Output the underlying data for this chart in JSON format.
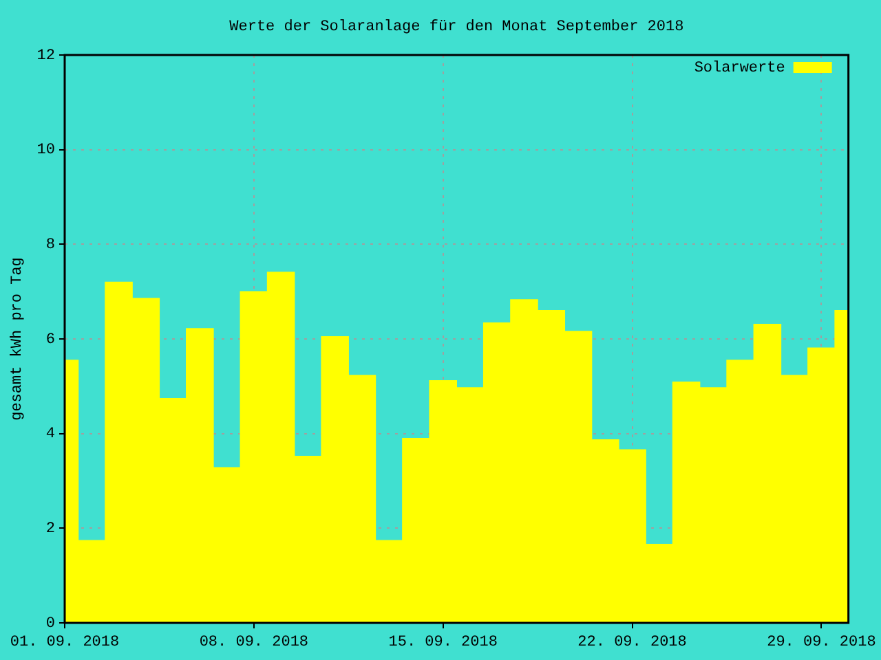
{
  "chart_data": {
    "type": "bar",
    "title": "Werte der Solaranlage für den Monat September 2018",
    "ylabel": "gesamt kWh pro Tag",
    "x": [
      "2018-09-01",
      "2018-09-02",
      "2018-09-03",
      "2018-09-04",
      "2018-09-05",
      "2018-09-06",
      "2018-09-07",
      "2018-09-08",
      "2018-09-09",
      "2018-09-10",
      "2018-09-11",
      "2018-09-12",
      "2018-09-13",
      "2018-09-14",
      "2018-09-15",
      "2018-09-16",
      "2018-09-17",
      "2018-09-18",
      "2018-09-19",
      "2018-09-20",
      "2018-09-21",
      "2018-09-22",
      "2018-09-23",
      "2018-09-24",
      "2018-09-25",
      "2018-09-26",
      "2018-09-27",
      "2018-09-28",
      "2018-09-29",
      "2018-09-30"
    ],
    "series": [
      {
        "name": "Solarwerte",
        "color": "#ffff00",
        "values": [
          5.55,
          1.74,
          7.2,
          6.86,
          4.74,
          6.22,
          3.28,
          7.0,
          7.41,
          3.52,
          6.05,
          5.23,
          1.74,
          3.9,
          5.12,
          4.97,
          6.34,
          6.83,
          6.6,
          6.16,
          3.87,
          3.66,
          1.66,
          5.09,
          4.97,
          5.55,
          6.31,
          5.23,
          5.81,
          6.6
        ]
      }
    ],
    "xlim": [
      "2018-09-01",
      "2018-09-30"
    ],
    "xticks": [
      {
        "value": "2018-09-01",
        "label": "01. 09. 2018"
      },
      {
        "value": "2018-09-08",
        "label": "08. 09. 2018"
      },
      {
        "value": "2018-09-15",
        "label": "15. 09. 2018"
      },
      {
        "value": "2018-09-22",
        "label": "22. 09. 2018"
      },
      {
        "value": "2018-09-29",
        "label": "29. 09. 2018"
      }
    ],
    "ylim": [
      0,
      12
    ],
    "yticks": [
      0,
      2,
      4,
      6,
      8,
      10,
      12
    ],
    "grid": true,
    "legend": "top right"
  }
}
